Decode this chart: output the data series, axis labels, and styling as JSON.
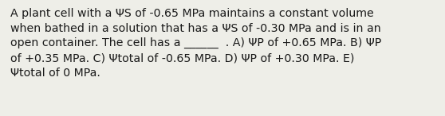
{
  "text": "A plant cell with a ΨS of -0.65 MPa maintains a constant volume\nwhen bathed in a solution that has a ΨS of -0.30 MPa and is in an\nopen container. The cell has a ______  . A) ΨP of +0.65 MPa. B) ΨP\nof +0.35 MPa. C) Ψtotal of -0.65 MPa. D) ΨP of +0.30 MPa. E)\nΨtotal of 0 MPa.",
  "background_color": "#eeeee8",
  "text_color": "#1a1a1a",
  "font_size": 10.2,
  "fig_width": 5.58,
  "fig_height": 1.46,
  "dpi": 100
}
